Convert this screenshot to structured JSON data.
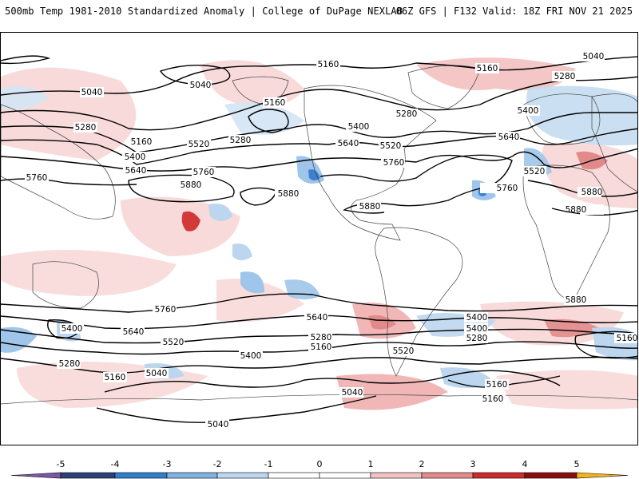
{
  "header": {
    "title_left": "500mb Temp 1981-2010 Standardized Anomaly | College of DuPage NEXLAB",
    "title_right": "06Z GFS | F132 Valid: 18Z FRI NOV 21 2025"
  },
  "contour_labels": {
    "l1": "5160",
    "l2": "5040",
    "l3": "5160",
    "l4": "5280",
    "l5": "5040",
    "l6": "5040",
    "l7": "5160",
    "l8": "5280",
    "l9": "5400",
    "l10": "5640",
    "l11": "5760",
    "l12": "5880",
    "l13": "5520",
    "l14": "5280",
    "l15": "5160",
    "l16": "5400",
    "l17": "5640",
    "l18": "5520",
    "l19": "5760",
    "l20": "5880",
    "l21": "5880",
    "l22": "5280",
    "l23": "5400",
    "l24": "5640",
    "l25": "5520",
    "l26": "5760",
    "l27": "5880",
    "l28": "5880",
    "l29": "5880",
    "l30": "5760",
    "l31": "5400",
    "l32": "5640",
    "l33": "5520",
    "l34": "5400",
    "l35": "5280",
    "l36": "5160",
    "l37": "5040",
    "l38": "5040",
    "l39": "5760",
    "l40": "5640",
    "l41": "5280",
    "l42": "5160",
    "l43": "5520",
    "l44": "5400",
    "l45": "5280",
    "l46": "5160",
    "l47": "5160",
    "l48": "5160",
    "l49": "5400",
    "l50": "5040"
  },
  "colors": {
    "contour": "#000000",
    "warm_light": "#f7d4d4",
    "warm_mid": "#eeaaaa",
    "warm_strong": "#d23a3a",
    "cold_light": "#d3e4f4",
    "cold_mid": "#9fc5ea",
    "cold_strong": "#3d7fd1",
    "land": "#444444"
  },
  "legend": {
    "ticks": [
      "-5",
      "-4",
      "-3",
      "-2",
      "-1",
      "0",
      "1",
      "2",
      "3",
      "4",
      "5"
    ],
    "colors": [
      "#7b58a6",
      "#2d3f7a",
      "#2f7fca",
      "#7fb2e3",
      "#bcd6ef",
      "#ffffff",
      "#ffffff",
      "#f2c1c1",
      "#e28a8a",
      "#cc2b2b",
      "#8a0f0f",
      "#f5b21a"
    ]
  }
}
